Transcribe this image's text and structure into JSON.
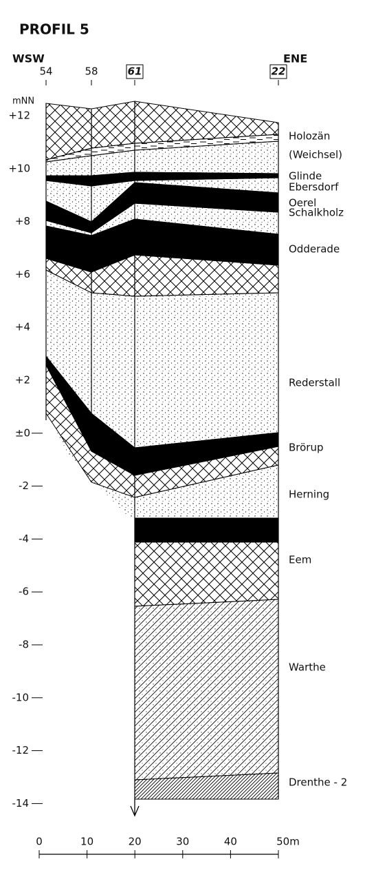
{
  "header": {
    "title": "PROFIL 5",
    "west": "WSW",
    "east": "ENE"
  },
  "columns": [
    "54",
    "58",
    "61",
    "22"
  ],
  "axis": {
    "unit": "mNN",
    "labels": [
      "+12",
      "+10",
      "+8",
      "+6",
      "+4",
      "+2",
      "±0",
      "-2",
      "-4",
      "-6",
      "-8",
      "-10",
      "-12",
      "-14"
    ]
  },
  "layers": [
    "Holozän",
    "(Weichsel)",
    "Glinde",
    "Ebersdorf",
    "Oerel",
    "Schalkholz",
    "Odderade",
    "Rederstall",
    "Brörup",
    "Herning",
    "Eem",
    "Warthe",
    "Drenthe - 2"
  ],
  "scale": {
    "labels": [
      "0",
      "10",
      "20",
      "30",
      "40",
      "50m"
    ]
  }
}
